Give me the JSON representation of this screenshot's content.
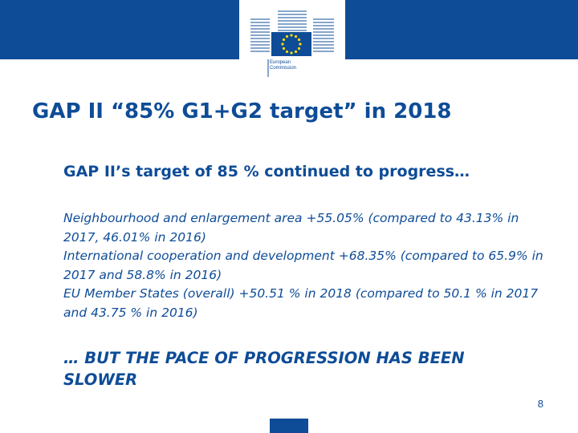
{
  "header": {
    "logo_label": "European Commission",
    "logo_line1": "European",
    "logo_line2": "Commission",
    "brand_color": "#0e4c97",
    "star_color": "#ffdd00"
  },
  "slide": {
    "title": "GAP II “85% G1+G2 target” in 2018",
    "lead": "GAP II’s target of 85 % continued to progress…",
    "bullets": [
      "Neighbourhood and enlargement area +55.05% (compared to 43.13% in 2017, 46.01% in 2016)",
      "International cooperation and development +68.35% (compared to 65.9% in 2017 and 58.8% in 2016)",
      "EU Member States (overall) +50.51 % in 2018 (compared to 50.1 % in 2017 and 43.75 % in 2016)"
    ],
    "conclusion": "… BUT THE PACE OF PROGRESSION HAS BEEN SLOWER",
    "page_number": "8"
  }
}
